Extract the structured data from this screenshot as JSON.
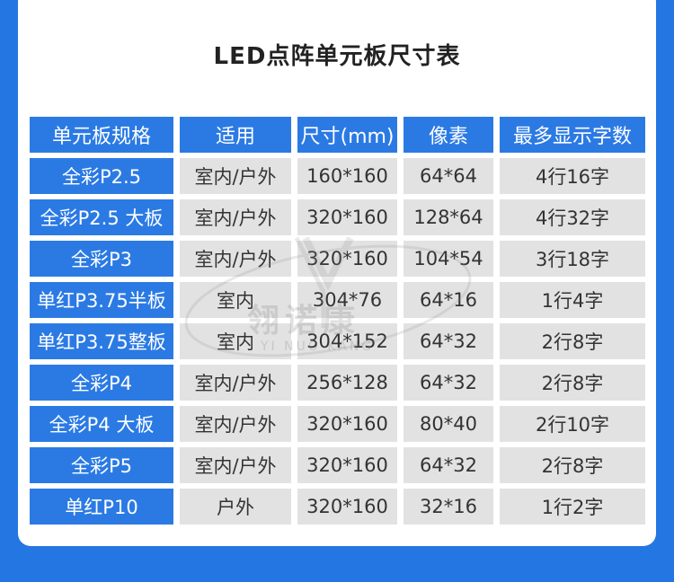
{
  "title": "LED点阵单元板尺寸表",
  "watermark": {
    "main": "翎诺康",
    "sub": "YI NUO KANG"
  },
  "headers": [
    "单元板规格",
    "适用",
    "尺寸(mm)",
    "像素",
    "最多显示字数"
  ],
  "rows": [
    [
      "全彩P2.5",
      "室内/户外",
      "160*160",
      "64*64",
      "4行16字"
    ],
    [
      "全彩P2.5 大板",
      "室内/户外",
      "320*160",
      "128*64",
      "4行32字"
    ],
    [
      "全彩P3",
      "室内/户外",
      "320*160",
      "104*54",
      "3行18字"
    ],
    [
      "单红P3.75半板",
      "室内",
      "304*76",
      "64*16",
      "1行4字"
    ],
    [
      "单红P3.75整板",
      "室内",
      "304*152",
      "64*32",
      "2行8字"
    ],
    [
      "全彩P4",
      "室内/户外",
      "256*128",
      "64*32",
      "2行8字"
    ],
    [
      "全彩P4 大板",
      "室内/户外",
      "320*160",
      "80*40",
      "2行10字"
    ],
    [
      "全彩P5",
      "室内/户外",
      "320*160",
      "64*32",
      "2行8字"
    ],
    [
      "单红P10",
      "户外",
      "320*160",
      "32*16",
      "1行2字"
    ]
  ],
  "colors": {
    "background": "#2477e2",
    "header_cell": "#2b7ae4",
    "value_cell": "#e2e2e2",
    "card": "#ffffff"
  }
}
